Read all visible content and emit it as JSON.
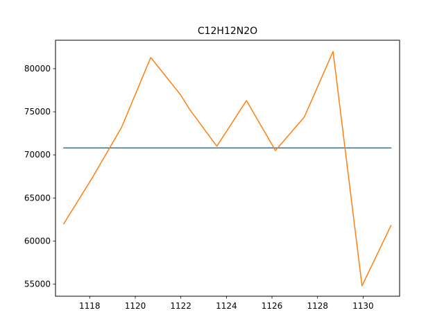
{
  "chart_data": {
    "type": "line",
    "title": "C12H12N2O",
    "xlabel": "",
    "ylabel": "",
    "xlim": [
      1116.5,
      1131.6
    ],
    "ylim": [
      53600,
      83300
    ],
    "xticks": [
      1118,
      1120,
      1122,
      1124,
      1126,
      1128,
      1130
    ],
    "yticks": [
      55000,
      60000,
      65000,
      70000,
      75000,
      80000
    ],
    "x": [
      1116.86,
      1118.15,
      1119.4,
      1120.68,
      1121.98,
      1122.38,
      1123.58,
      1124.88,
      1126.15,
      1127.42,
      1128.68,
      1129.95,
      1131.22
    ],
    "series": [
      {
        "color": "#1f77b4",
        "values": [
          70800,
          70800,
          70800,
          70800,
          70800,
          70800,
          70800,
          70800,
          70800,
          70800,
          70800,
          70800,
          70800
        ]
      },
      {
        "color": "#ff7f0e",
        "values": [
          62000,
          67500,
          73200,
          81300,
          77000,
          75300,
          71000,
          76300,
          70500,
          74400,
          82000,
          54800,
          61800
        ]
      }
    ],
    "grid": false,
    "legend": "none"
  }
}
